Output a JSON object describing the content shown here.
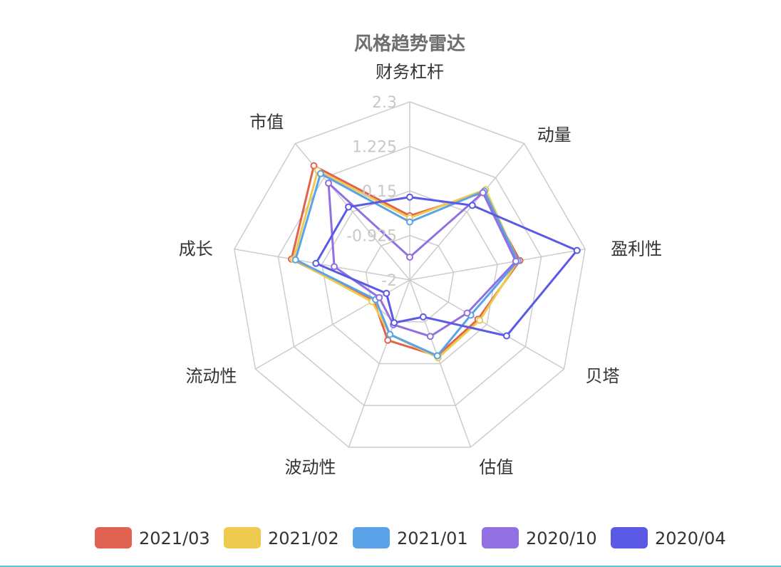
{
  "chart_data": {
    "type": "radar",
    "title": "风格趋势雷达",
    "indicators": [
      "财务杠杆",
      "动量",
      "盈利性",
      "贝塔",
      "估值",
      "波动性",
      "流动性",
      "成长",
      "市值"
    ],
    "tick_labels": [
      "2.3",
      "1.225",
      "0.15",
      "-0.925",
      "-2"
    ],
    "range": [
      -2,
      2.3
    ],
    "grid": true,
    "legend_position": "bottom",
    "series": [
      {
        "name": "2021/03",
        "color": "#e06351",
        "values": [
          -0.45,
          0.75,
          0.7,
          -0.1,
          -0.05,
          -0.45,
          -1.0,
          0.9,
          1.6
        ]
      },
      {
        "name": "2021/02",
        "color": "#eecb4f",
        "values": [
          -0.5,
          0.85,
          0.65,
          -0.05,
          0.0,
          -0.6,
          -0.95,
          0.85,
          1.45
        ]
      },
      {
        "name": "2021/01",
        "color": "#5aa3e8",
        "values": [
          -0.6,
          0.8,
          0.65,
          -0.3,
          -0.05,
          -0.6,
          -1.05,
          0.8,
          1.35
        ]
      },
      {
        "name": "2020/10",
        "color": "#9170e1",
        "values": [
          -1.45,
          0.75,
          0.6,
          -0.4,
          -0.55,
          -0.85,
          -1.15,
          -0.15,
          1.05
        ]
      },
      {
        "name": "2020/04",
        "color": "#5a5ae6",
        "values": [
          0.0,
          0.35,
          2.1,
          0.7,
          -1.05,
          -0.9,
          -1.35,
          0.3,
          0.3
        ]
      }
    ]
  }
}
